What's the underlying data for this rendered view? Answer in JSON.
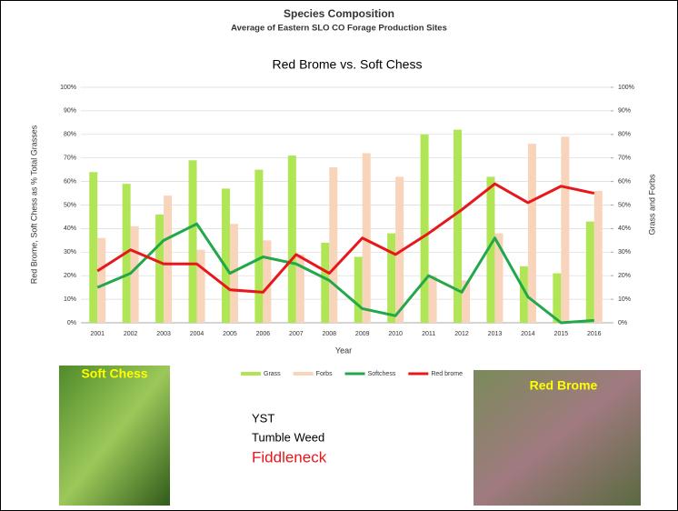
{
  "chart_data": {
    "type": "bar-line",
    "title": "Species Composition",
    "subtitle": "Average of Eastern SLO CO Forage Production Sites",
    "chart_title": "Red Brome vs. Soft Chess",
    "x_label": "Year",
    "y_label": "Red Brome, Soft Chess as % Total Grasses",
    "y2_label": "Grass and Forbs",
    "categories": [
      "2001",
      "2002",
      "2003",
      "2004",
      "2005",
      "2006",
      "2007",
      "2008",
      "2009",
      "2010",
      "2011",
      "2012",
      "2013",
      "2014",
      "2015",
      "2016"
    ],
    "series": [
      {
        "name": "Grass",
        "kind": "bar",
        "axis": "y2",
        "color": "#b0e655",
        "values": [
          64,
          59,
          46,
          69,
          57,
          65,
          71,
          34,
          28,
          38,
          80,
          82,
          62,
          24,
          21,
          43
        ]
      },
      {
        "name": "Forbs",
        "kind": "bar",
        "axis": "y2",
        "color": "#f8d4bb",
        "values": [
          36,
          41,
          54,
          31,
          42,
          35,
          29,
          66,
          72,
          62,
          20,
          18,
          38,
          76,
          79,
          56
        ]
      },
      {
        "name": "Softchess",
        "kind": "line",
        "color": "#22a84a",
        "values": [
          15,
          21,
          35,
          42,
          21,
          28,
          25,
          18,
          6,
          3,
          20,
          13,
          36,
          11,
          0,
          1
        ]
      },
      {
        "name": "Red brome",
        "kind": "line",
        "color": "#e8171b",
        "values": [
          22,
          31,
          25,
          25,
          14,
          13,
          29,
          21,
          36,
          29,
          38,
          48,
          59,
          51,
          58,
          55
        ]
      }
    ],
    "ylim": [
      0,
      100
    ],
    "yticks": [
      {
        "value": 0,
        "label": "0%"
      },
      {
        "value": 10,
        "label": "10%"
      },
      {
        "value": 20,
        "label": "20%"
      },
      {
        "value": 30,
        "label": "30%"
      },
      {
        "value": 40,
        "label": "40%"
      },
      {
        "value": 50,
        "label": "50%"
      },
      {
        "value": 60,
        "label": "60%"
      },
      {
        "value": 70,
        "label": "70%"
      },
      {
        "value": 80,
        "label": "80%"
      },
      {
        "value": 90,
        "label": "90%"
      },
      {
        "value": 100,
        "label": "100%"
      }
    ],
    "y2lim": [
      0,
      100
    ],
    "y2ticks": [
      {
        "value": 0,
        "label": "0%"
      },
      {
        "value": 10,
        "label": "10%"
      },
      {
        "value": 20,
        "label": "20%"
      },
      {
        "value": 30,
        "label": "30%"
      },
      {
        "value": 40,
        "label": "40%"
      },
      {
        "value": 50,
        "label": "50%"
      },
      {
        "value": 60,
        "label": "60%"
      },
      {
        "value": 70,
        "label": "70%"
      },
      {
        "value": 80,
        "label": "80%"
      },
      {
        "value": 90,
        "label": "90%"
      },
      {
        "value": 100,
        "label": "100%"
      }
    ],
    "grid": true,
    "legend": "bottom"
  },
  "photos": {
    "left_label": "Soft Chess",
    "right_label": "Red Brome"
  },
  "notes": [
    "YST",
    "Tumble Weed",
    "Fiddleneck"
  ]
}
